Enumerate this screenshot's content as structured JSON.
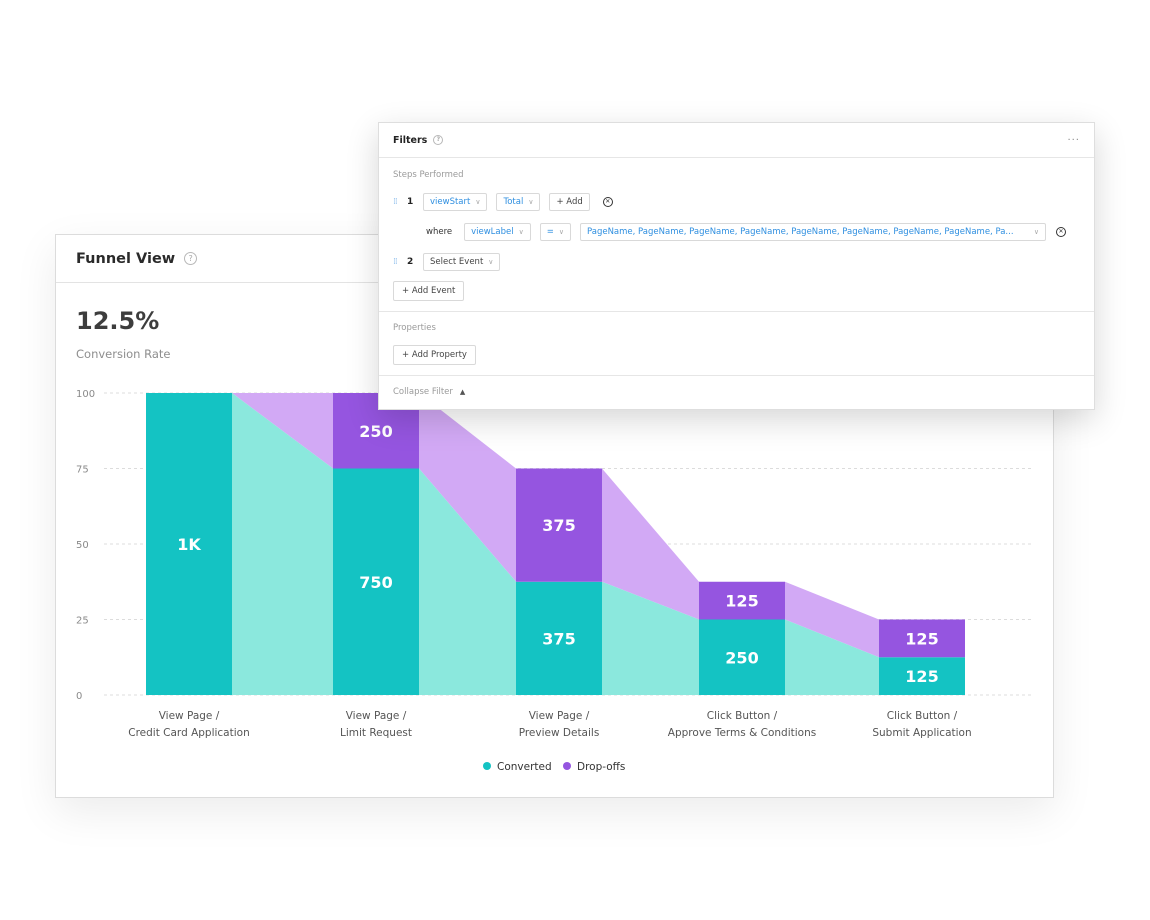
{
  "funnel": {
    "title": "Funnel View",
    "rate_value": "12.5%",
    "rate_label": "Conversion Rate"
  },
  "colors": {
    "converted": "#14c3c3",
    "converted_fill": "#8be8dd",
    "dropoff": "#9555e0",
    "dropoff_fill": "#d2a9f5"
  },
  "chart_data": {
    "type": "bar",
    "stacked": true,
    "y_ticks": [
      "0",
      "25",
      "50",
      "75",
      "100"
    ],
    "ylim": [
      0,
      100
    ],
    "grid": true,
    "categories": [
      [
        "View Page /",
        "Credit Card Application"
      ],
      [
        "View Page /",
        "Limit Request"
      ],
      [
        "View Page /",
        "Preview Details"
      ],
      [
        "Click Button /",
        "Approve Terms & Conditions"
      ],
      [
        "Click Button /",
        "Submit Application"
      ]
    ],
    "series": [
      {
        "name": "Converted",
        "values": [
          100,
          75,
          37.5,
          25,
          12.5
        ],
        "labels": [
          "1K",
          "750",
          "375",
          "250",
          "125"
        ]
      },
      {
        "name": "Drop-offs",
        "values": [
          0,
          25,
          37.5,
          12.5,
          12.5
        ],
        "labels": [
          "",
          "250",
          "375",
          "125",
          "125"
        ]
      }
    ],
    "legend": "bottom-center"
  },
  "filters": {
    "title": "Filters",
    "menu": "···",
    "steps_label": "Steps Performed",
    "step1": {
      "num": "1",
      "event": "viewStart",
      "aggregation": "Total",
      "add_label": "+ Add",
      "where": "where",
      "property": "viewLabel",
      "operator": "=",
      "value": "PageName, PageName, PageName, PageName, PageName, PageName, PageName, PageName, Pa..."
    },
    "step2": {
      "num": "2",
      "event_placeholder": "Select Event"
    },
    "add_event": "+ Add Event",
    "properties_label": "Properties",
    "add_property": "+ Add Property",
    "collapse": "Collapse Filter"
  }
}
